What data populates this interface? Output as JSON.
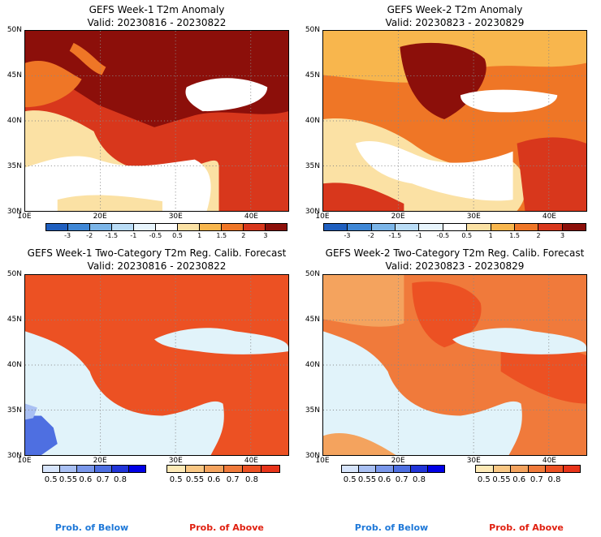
{
  "panels": [
    {
      "title": "GEFS Week-1 T2m Anomaly",
      "valid": "Valid: 20230816 - 20230822"
    },
    {
      "title": "GEFS Week-2 T2m Anomaly",
      "valid": "Valid: 20230823 - 20230829"
    },
    {
      "title": "GEFS Week-1 Two-Category T2m Reg. Calib. Forecast",
      "valid": "Valid: 20230816 - 20230822"
    },
    {
      "title": "GEFS Week-2 Two-Category T2m Reg. Calib. Forecast",
      "valid": "Valid: 20230823 - 20230829"
    }
  ],
  "lat_labels": [
    "50N",
    "45N",
    "40N",
    "35N",
    "30N"
  ],
  "lon_labels": [
    "10E",
    "20E",
    "30E",
    "40E"
  ],
  "anomaly_colorbar": {
    "ticks": [
      "-3",
      "-2",
      "-1.5",
      "-1",
      "-0.5",
      "0.5",
      "1",
      "1.5",
      "2",
      "3"
    ],
    "colors": [
      "#1f5fbf",
      "#3f87d6",
      "#7bb5e8",
      "#b9dcf6",
      "#e8f5fd",
      "#ffffff",
      "#fbe1a4",
      "#f8b64d",
      "#ef7626",
      "#d8371c",
      "#8c0f0a"
    ]
  },
  "prob_below_colorbar": {
    "ticks": [
      "0.5",
      "0.55",
      "0.6",
      "0.7",
      "0.8"
    ],
    "colors": [
      "#d6e4fb",
      "#a9c0f3",
      "#7a97ea",
      "#4e6fe1",
      "#2135d9",
      "#0000e6"
    ]
  },
  "prob_above_colorbar": {
    "ticks": [
      "0.5",
      "0.55",
      "0.6",
      "0.7",
      "0.8"
    ],
    "colors": [
      "#fde9b6",
      "#f9c784",
      "#f4a35e",
      "#f07a3b",
      "#ec5123",
      "#e8341a"
    ]
  },
  "legend_below": "Prob. of Below",
  "legend_above": "Prob. of Above",
  "colors": {
    "sea_white": "#ffffff",
    "sea_light_blue": "#e1f3fa",
    "label_blue": "#1e78d8",
    "label_red": "#e02010"
  }
}
